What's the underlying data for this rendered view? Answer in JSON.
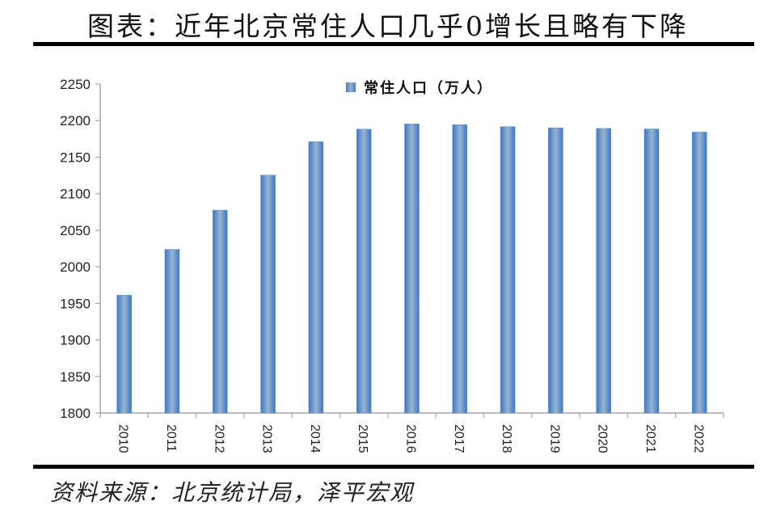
{
  "header": {
    "title": "图表：近年北京常住人口几乎0增长且略有下降"
  },
  "footer": {
    "source": "资料来源：北京统计局，泽平宏观"
  },
  "legend": {
    "label": "常住人口（万人）"
  },
  "colors": {
    "bar_edge": "#3a78c6",
    "bar_center": "#9ab4d0",
    "axis": "#a6a6a6",
    "rule": "#000000"
  },
  "chart_data": {
    "type": "bar",
    "title": "近年北京常住人口几乎0增长且略有下降",
    "xlabel": "",
    "ylabel": "",
    "legend": [
      "常住人口（万人）"
    ],
    "legend_position": "top",
    "grid": false,
    "ylim": [
      1800,
      2250
    ],
    "yticks": [
      1800,
      1850,
      1900,
      1950,
      2000,
      2050,
      2100,
      2150,
      2200,
      2250
    ],
    "categories": [
      "2010",
      "2011",
      "2012",
      "2013",
      "2014",
      "2015",
      "2016",
      "2017",
      "2018",
      "2019",
      "2020",
      "2021",
      "2022"
    ],
    "series": [
      {
        "name": "常住人口（万人）",
        "values": [
          1961.2,
          2023.8,
          2077.5,
          2125.4,
          2171.1,
          2188.3,
          2195.4,
          2194.4,
          2191.7,
          2190.1,
          2189.3,
          2188.6,
          2184.3
        ]
      }
    ]
  }
}
